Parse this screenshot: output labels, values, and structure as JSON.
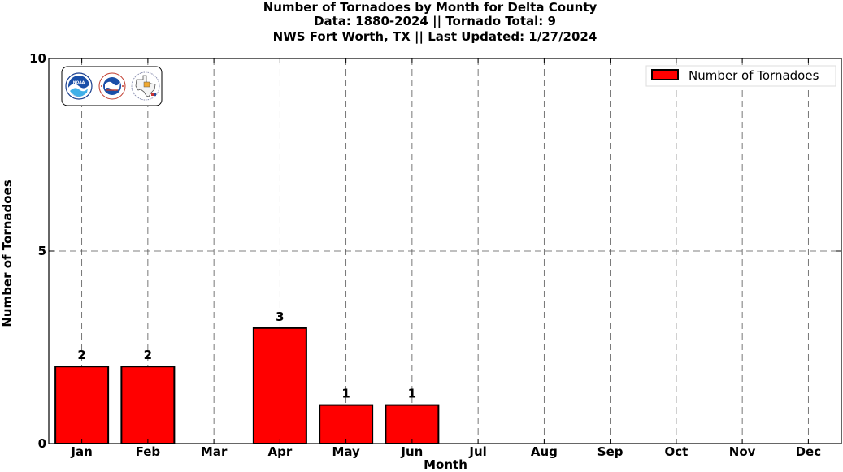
{
  "header": {
    "title_line1": "Number of Tornadoes by Month for Delta County",
    "title_line2": "Data: 1880-2024 || Tornado Total: 9",
    "title_line3": "NWS Fort Worth, TX || Last Updated: 1/27/2024"
  },
  "logos": {
    "noaa_text": "NOAA",
    "nws_text": "NATIONAL WEATHER SERVICE"
  },
  "colors": {
    "bar_fill": "#ff0000",
    "bar_stroke": "#000000",
    "grid": "#555555",
    "background": "#ffffff"
  },
  "chart_data": {
    "type": "bar",
    "title": "Number of Tornadoes by Month for Delta County",
    "subtitle": "Data: 1880-2024 || Tornado Total: 9 / NWS Fort Worth, TX || Last Updated: 1/27/2024",
    "categories": [
      "Jan",
      "Feb",
      "Mar",
      "Apr",
      "May",
      "Jun",
      "Jul",
      "Aug",
      "Sep",
      "Oct",
      "Nov",
      "Dec"
    ],
    "series": [
      {
        "name": "Number of Tornadoes",
        "values": [
          2,
          2,
          0,
          3,
          1,
          1,
          0,
          0,
          0,
          0,
          0,
          0
        ]
      }
    ],
    "data_labels": [
      "2",
      "2",
      "",
      "3",
      "1",
      "1",
      "",
      "",
      "",
      "",
      "",
      ""
    ],
    "xlabel": "Month",
    "ylabel": "Number of Tornadoes",
    "ylim": [
      0,
      10
    ],
    "yticks": [
      0,
      5,
      10
    ],
    "grid": true,
    "legend_position": "top-right"
  }
}
